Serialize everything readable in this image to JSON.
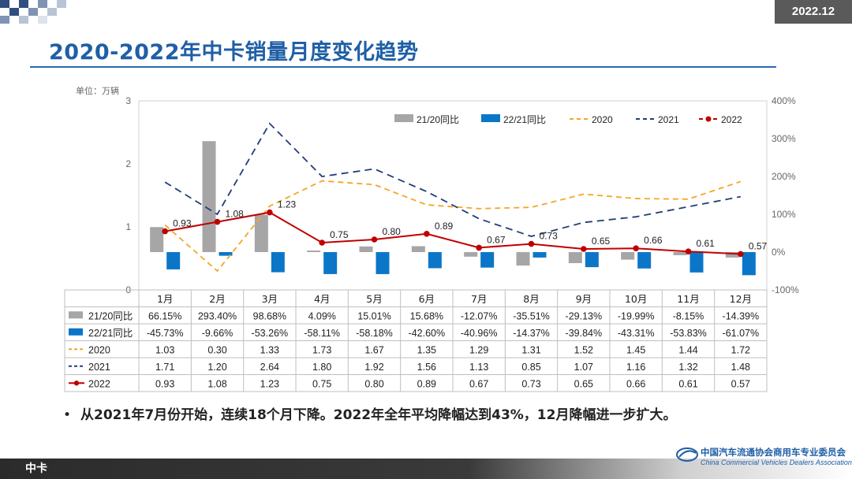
{
  "header": {
    "date_badge": "2022.12",
    "title": "2020-2022年中卡销量月度变化趋势"
  },
  "unit_label": "单位：万辆",
  "summary": {
    "bullet": "•",
    "text": "从2021年7月份开始，连续18个月下降。2022年全年平均降幅达到43%，12月降幅进一步扩大。"
  },
  "footer": {
    "label": "中卡",
    "org_cn": "中国汽车流通协会商用车专业委员会",
    "org_en": "China Commercial Vehicles Dealers Association"
  },
  "colors": {
    "title": "#1f5fa6",
    "bar_2120": "#a6a6a6",
    "bar_2221": "#0b76c8",
    "line_2020": "#f5a623",
    "line_2021": "#1f3f7a",
    "line_2022": "#c00000"
  },
  "chart_data": {
    "type": "bar",
    "categories": [
      "1月",
      "2月",
      "3月",
      "4月",
      "5月",
      "6月",
      "7月",
      "8月",
      "9月",
      "10月",
      "11月",
      "12月"
    ],
    "left_axis": {
      "ylim": [
        0,
        3
      ],
      "ticks": [
        "0",
        "1",
        "2",
        "3"
      ]
    },
    "right_axis": {
      "ylim": [
        -100,
        400
      ],
      "ticks": [
        "-100%",
        "0%",
        "100%",
        "200%",
        "300%",
        "400%"
      ]
    },
    "bar_series": [
      {
        "name": "21/20同比",
        "axis": "right",
        "values": [
          66.15,
          293.4,
          98.68,
          4.09,
          15.01,
          15.68,
          -12.07,
          -35.51,
          -29.13,
          -19.99,
          -8.15,
          -14.39
        ],
        "labels": [
          "66.15%",
          "293.40%",
          "98.68%",
          "4.09%",
          "15.01%",
          "15.68%",
          "-12.07%",
          "-35.51%",
          "-29.13%",
          "-19.99%",
          "-8.15%",
          "-14.39%"
        ]
      },
      {
        "name": "22/21同比",
        "axis": "right",
        "values": [
          -45.73,
          -9.66,
          -53.26,
          -58.11,
          -58.18,
          -42.6,
          -40.96,
          -14.37,
          -39.84,
          -43.31,
          -53.83,
          -61.07
        ],
        "labels": [
          "-45.73%",
          "-9.66%",
          "-53.26%",
          "-58.11%",
          "-58.18%",
          "-42.60%",
          "-40.96%",
          "-14.37%",
          "-39.84%",
          "-43.31%",
          "-53.83%",
          "-61.07%"
        ]
      }
    ],
    "line_series": [
      {
        "name": "2020",
        "style": "dashed",
        "values": [
          1.03,
          0.3,
          1.33,
          1.73,
          1.67,
          1.35,
          1.29,
          1.31,
          1.52,
          1.45,
          1.44,
          1.72
        ],
        "labels": [
          "1.03",
          "0.30",
          "1.33",
          "1.73",
          "1.67",
          "1.35",
          "1.29",
          "1.31",
          "1.52",
          "1.45",
          "1.44",
          "1.72"
        ]
      },
      {
        "name": "2021",
        "style": "dashed",
        "values": [
          1.71,
          1.2,
          2.64,
          1.8,
          1.92,
          1.56,
          1.13,
          0.85,
          1.07,
          1.16,
          1.32,
          1.48
        ],
        "labels": [
          "1.71",
          "1.20",
          "2.64",
          "1.80",
          "1.92",
          "1.56",
          "1.13",
          "0.85",
          "1.07",
          "1.16",
          "1.32",
          "1.48"
        ]
      },
      {
        "name": "2022",
        "style": "solid-marker",
        "values": [
          0.93,
          1.08,
          1.23,
          0.75,
          0.8,
          0.89,
          0.67,
          0.73,
          0.65,
          0.66,
          0.61,
          0.57
        ],
        "labels": [
          "0.93",
          "1.08",
          "1.23",
          "0.75",
          "0.80",
          "0.89",
          "0.67",
          "0.73",
          "0.65",
          "0.66",
          "0.61",
          "0.57"
        ]
      }
    ],
    "legend_placement": "top-right"
  }
}
